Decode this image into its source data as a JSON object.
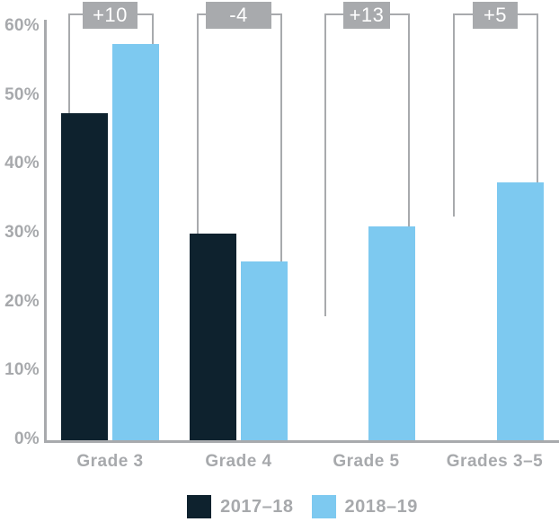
{
  "chart_data": {
    "type": "bar",
    "title": "",
    "xlabel": "",
    "ylabel": "",
    "categories": [
      "Grade 3",
      "Grade 4",
      "Grade 5",
      "Grades 3–5"
    ],
    "series": [
      {
        "name": "2017–18",
        "color": "#0e222e",
        "values": [
          47.5,
          30,
          18,
          32.5
        ],
        "bar_visible": [
          true,
          true,
          false,
          false
        ],
        "note": "for Grade 5 and Grades 3–5 the 2017–18 value is shown only as the bracket-line endpoint, no bar drawn"
      },
      {
        "name": "2018–19",
        "color": "#7dc9f0",
        "values": [
          57.5,
          26,
          31,
          37.5
        ],
        "bar_visible": [
          true,
          true,
          true,
          true
        ]
      }
    ],
    "difference_labels": [
      "+10",
      "-4",
      "+13",
      "+5"
    ],
    "y_tick_values": [
      0,
      10,
      20,
      30,
      40,
      50,
      60
    ],
    "y_tick_labels": [
      "0%",
      "10%",
      "20%",
      "30%",
      "40%",
      "50%",
      "60%"
    ],
    "ylim": [
      0,
      60
    ],
    "grid": false,
    "legend_position": "bottom"
  },
  "colors": {
    "background": "#ffffff",
    "axis_line": "#a8aaad",
    "tick_text": "#a7a9ac",
    "category_text": "#a7a9ac",
    "bracket_line": "#a8aaad",
    "badge_background": "#a8aaad",
    "badge_text": "#ffffff",
    "legend_text": "#a7a9ac"
  }
}
